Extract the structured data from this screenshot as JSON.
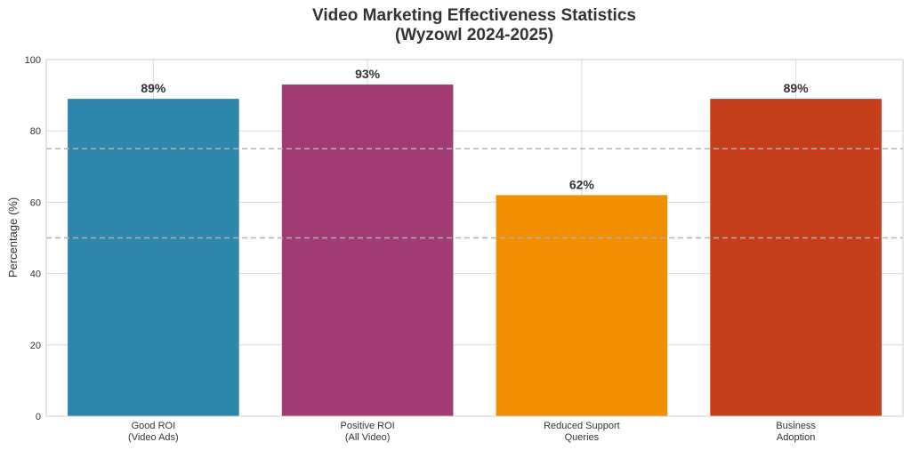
{
  "chart_data": {
    "type": "bar",
    "title": [
      "Video Marketing Effectiveness Statistics",
      "(Wyzowl 2024-2025)"
    ],
    "xlabel": "",
    "ylabel": "Percentage (%)",
    "ylim": [
      0,
      100
    ],
    "yticks": [
      "0",
      "20",
      "40",
      "60",
      "80",
      "100"
    ],
    "categories": [
      [
        "Good ROI",
        "(Video Ads)"
      ],
      [
        "Positive ROI",
        "(All Video)"
      ],
      [
        "Reduced Support",
        "Queries"
      ],
      [
        "Business",
        "Adoption"
      ]
    ],
    "values": [
      89,
      93,
      62,
      89
    ],
    "data_labels": [
      "89%",
      "93%",
      "62%",
      "89%"
    ],
    "colors": [
      "#2E86AB",
      "#A23B72",
      "#F18F01",
      "#C73E1D"
    ],
    "reference_lines": [
      50,
      75
    ],
    "grid": true,
    "legend": "none"
  }
}
